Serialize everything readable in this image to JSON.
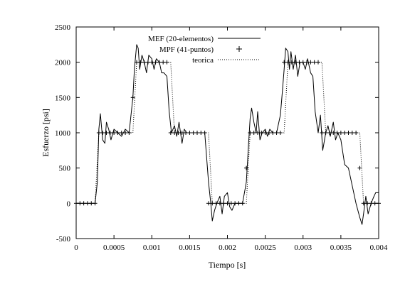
{
  "chart_data": {
    "type": "line",
    "xlabel": "Tiempo [s]",
    "ylabel": "Esfuerzo [psi]",
    "xlim": [
      0,
      0.004
    ],
    "ylim": [
      -500,
      2500
    ],
    "x_ticks": [
      0,
      0.0005,
      0.001,
      0.0015,
      0.002,
      0.0025,
      0.003,
      0.0035,
      0.004
    ],
    "x_tick_labels": [
      "0",
      "0.0005",
      "0.001",
      "0.0015",
      "0.002",
      "0.0025",
      "0.003",
      "0.0035",
      "0.004"
    ],
    "y_ticks": [
      -500,
      0,
      500,
      1000,
      1500,
      2000,
      2500
    ],
    "y_tick_labels": [
      "-500",
      "0",
      "500",
      "1000",
      "1500",
      "2000",
      "2500"
    ],
    "grid": false,
    "legend_position": "top-center",
    "series": [
      {
        "name": "MEF (20-elementos)",
        "style": "solid",
        "color": "#000000",
        "x": [
          0,
          0.00025,
          0.00028,
          0.0003,
          0.00032,
          0.00035,
          0.00038,
          0.0004,
          0.00043,
          0.00046,
          0.0005,
          0.00055,
          0.0006,
          0.00065,
          0.0007,
          0.00072,
          0.00075,
          0.00077,
          0.0008,
          0.00082,
          0.00084,
          0.00087,
          0.0009,
          0.00093,
          0.00096,
          0.001,
          0.00103,
          0.00106,
          0.0011,
          0.00113,
          0.00116,
          0.0012,
          0.00123,
          0.00126,
          0.0013,
          0.00133,
          0.00136,
          0.0014,
          0.00143,
          0.00146,
          0.0015,
          0.00155,
          0.0016,
          0.0017,
          0.00175,
          0.00178,
          0.0018,
          0.00183,
          0.00186,
          0.0019,
          0.00193,
          0.00196,
          0.002,
          0.00203,
          0.00206,
          0.0021,
          0.0022,
          0.00225,
          0.00228,
          0.0023,
          0.00232,
          0.00235,
          0.00238,
          0.0024,
          0.00243,
          0.00246,
          0.0025,
          0.00253,
          0.00256,
          0.0026,
          0.00265,
          0.0027,
          0.00272,
          0.00275,
          0.00277,
          0.0028,
          0.00282,
          0.00284,
          0.00287,
          0.0029,
          0.00293,
          0.00296,
          0.003,
          0.00303,
          0.00306,
          0.0031,
          0.00313,
          0.00316,
          0.0032,
          0.00323,
          0.00326,
          0.0033,
          0.00333,
          0.00336,
          0.0034,
          0.00343,
          0.00346,
          0.0035,
          0.00355,
          0.0036,
          0.0037,
          0.00375,
          0.00378,
          0.0038,
          0.00383,
          0.00386,
          0.0039,
          0.00393,
          0.00396,
          0.004
        ],
        "y": [
          0,
          0,
          300,
          1050,
          1270,
          900,
          850,
          1150,
          1050,
          900,
          1050,
          1000,
          950,
          1050,
          1000,
          1200,
          1500,
          1900,
          2250,
          2200,
          1900,
          2100,
          2000,
          1850,
          2100,
          2050,
          1900,
          2050,
          2000,
          1850,
          1850,
          1800,
          1300,
          1000,
          1100,
          950,
          1150,
          850,
          1050,
          1000,
          1000,
          1000,
          1000,
          1000,
          300,
          0,
          -250,
          -100,
          0,
          100,
          -150,
          100,
          150,
          -50,
          -100,
          0,
          0,
          300,
          850,
          1200,
          1350,
          1150,
          1000,
          1300,
          900,
          1000,
          1050,
          950,
          1050,
          1000,
          1000,
          1250,
          1500,
          1900,
          2200,
          2150,
          1900,
          2150,
          1900,
          2100,
          1800,
          2000,
          2000,
          1900,
          2050,
          1850,
          1800,
          1300,
          1000,
          1250,
          750,
          1000,
          1100,
          950,
          1150,
          900,
          1000,
          900,
          550,
          500,
          0,
          -200,
          -300,
          -150,
          100,
          -150,
          0,
          80,
          150,
          150
        ]
      },
      {
        "name": "MPF (41-puntos)",
        "style": "points",
        "marker": "+",
        "color": "#000000",
        "x": [
          0,
          5e-05,
          0.0001,
          0.00015,
          0.0002,
          0.00025,
          0.0003,
          0.00035,
          0.0004,
          0.00045,
          0.0005,
          0.00055,
          0.0006,
          0.00065,
          0.0007,
          0.00075,
          0.0008,
          0.00085,
          0.0009,
          0.00095,
          0.001,
          0.00105,
          0.0011,
          0.00115,
          0.0012,
          0.00125,
          0.0013,
          0.00135,
          0.0014,
          0.00145,
          0.0015,
          0.00155,
          0.0016,
          0.00165,
          0.0017,
          0.00175,
          0.0018,
          0.00185,
          0.0019,
          0.00195,
          0.002,
          0.00205,
          0.0021,
          0.00215,
          0.0022,
          0.00225,
          0.0023,
          0.00235,
          0.0024,
          0.00245,
          0.0025,
          0.00255,
          0.0026,
          0.00265,
          0.0027,
          0.00275,
          0.0028,
          0.00285,
          0.0029,
          0.00295,
          0.003,
          0.00305,
          0.0031,
          0.00315,
          0.0032,
          0.00325,
          0.0033,
          0.00335,
          0.0034,
          0.00345,
          0.0035,
          0.00355,
          0.0036,
          0.00365,
          0.0037,
          0.00375,
          0.0038,
          0.00385,
          0.0039,
          0.00395,
          0.004
        ],
        "y": [
          0,
          0,
          0,
          0,
          0,
          0,
          1000,
          1000,
          1000,
          1000,
          1000,
          1000,
          1000,
          1000,
          1000,
          1500,
          2000,
          2000,
          2000,
          2000,
          2000,
          2000,
          2000,
          2000,
          2000,
          1000,
          1000,
          1000,
          1000,
          1000,
          1000,
          1000,
          1000,
          1000,
          1000,
          0,
          0,
          0,
          0,
          0,
          0,
          0,
          0,
          0,
          0,
          500,
          1000,
          1000,
          1000,
          1000,
          1000,
          1000,
          1000,
          1000,
          1000,
          2000,
          2000,
          2000,
          2000,
          2000,
          2000,
          2000,
          2000,
          2000,
          2000,
          1000,
          1000,
          1000,
          1000,
          1000,
          1000,
          1000,
          1000,
          1000,
          1000,
          500,
          0,
          0,
          0,
          0,
          0
        ]
      },
      {
        "name": "teorica",
        "style": "dotted",
        "color": "#000000",
        "x": [
          0,
          0.00025,
          0.0003,
          0.00075,
          0.0008,
          0.00125,
          0.0013,
          0.00175,
          0.0018,
          0.00225,
          0.0023,
          0.00275,
          0.0028,
          0.00325,
          0.0033,
          0.00375,
          0.0038,
          0.004
        ],
        "y": [
          0,
          0,
          1000,
          1000,
          2000,
          2000,
          1000,
          1000,
          0,
          0,
          1000,
          1000,
          2000,
          2000,
          1000,
          1000,
          0,
          0
        ]
      }
    ]
  }
}
